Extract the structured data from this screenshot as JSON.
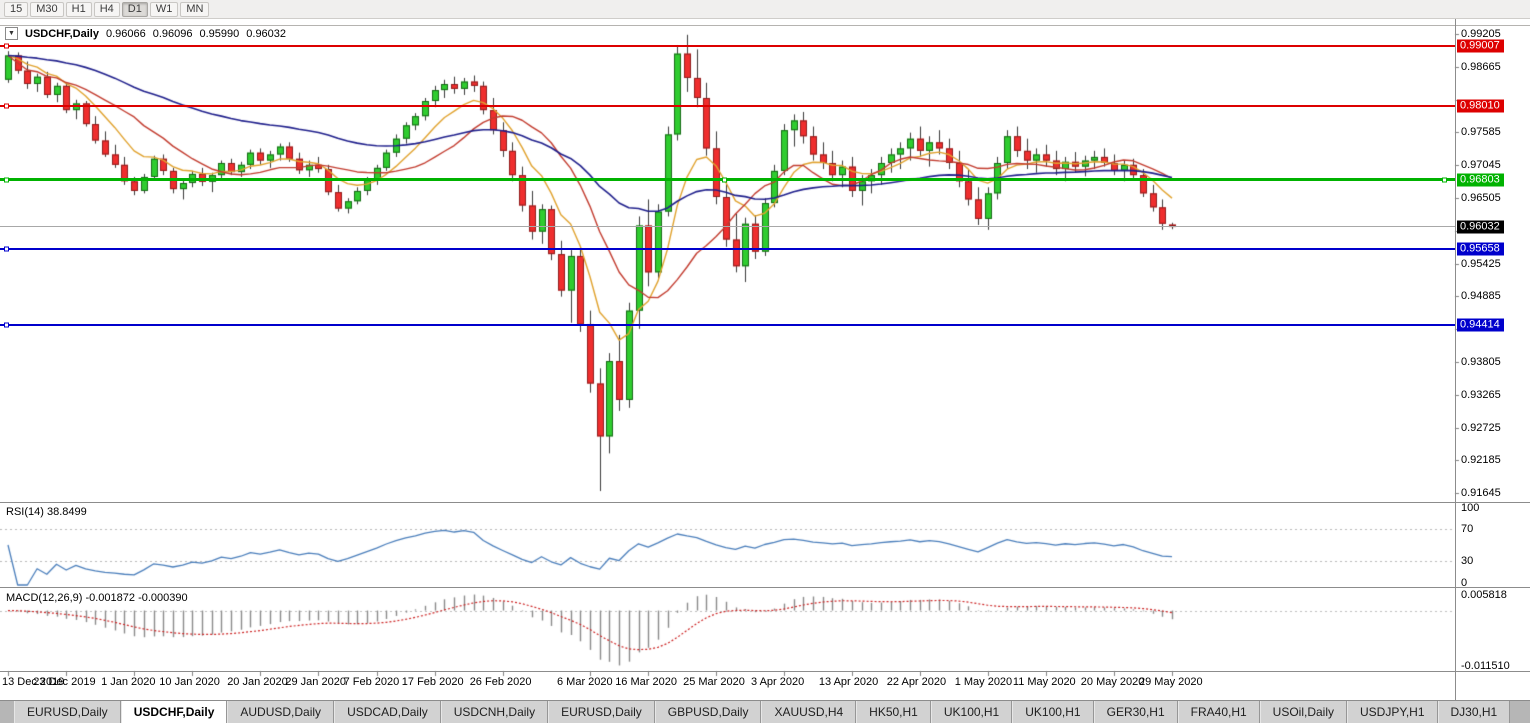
{
  "toolbar": {
    "timeframes": [
      {
        "label": "15",
        "active": false
      },
      {
        "label": "M30",
        "active": false
      },
      {
        "label": "H1",
        "active": false
      },
      {
        "label": "H4",
        "active": false
      },
      {
        "label": "D1",
        "active": true
      },
      {
        "label": "W1",
        "active": false
      },
      {
        "label": "MN",
        "active": false
      }
    ]
  },
  "chart_header": {
    "menu_icon_glyph": "▼",
    "symbol": "USDCHF,Daily",
    "open": "0.96066",
    "high": "0.96096",
    "low": "0.95990",
    "close": "0.96032"
  },
  "chart_data": {
    "type": "candlestick",
    "symbol": "USDCHF",
    "timeframe": "Daily",
    "y_axis": {
      "range": [
        0.915,
        0.9945
      ],
      "ticks": [
        "0.99205",
        "0.98665",
        "0.98125",
        "0.97585",
        "0.97045",
        "0.96505",
        "0.95965",
        "0.95425",
        "0.94885",
        "0.94345",
        "0.93805",
        "0.93265",
        "0.92725",
        "0.92185",
        "0.91645"
      ]
    },
    "x_ticks": [
      {
        "label": "13 Dec 2019",
        "i": 0
      },
      {
        "label": "23 Dec 2019",
        "i": 6
      },
      {
        "label": "1 Jan 2020",
        "i": 13
      },
      {
        "label": "10 Jan 2020",
        "i": 19
      },
      {
        "label": "20 Jan 2020",
        "i": 26
      },
      {
        "label": "29 Jan 2020",
        "i": 32
      },
      {
        "label": "7 Feb 2020",
        "i": 38
      },
      {
        "label": "17 Feb 2020",
        "i": 44
      },
      {
        "label": "26 Feb 2020",
        "i": 51
      },
      {
        "label": "6 Mar 2020",
        "i": 60
      },
      {
        "label": "16 Mar 2020",
        "i": 66
      },
      {
        "label": "25 Mar 2020",
        "i": 73
      },
      {
        "label": "3 Apr 2020",
        "i": 80
      },
      {
        "label": "13 Apr 2020",
        "i": 87
      },
      {
        "label": "22 Apr 2020",
        "i": 94
      },
      {
        "label": "1 May 2020",
        "i": 101
      },
      {
        "label": "11 May 2020",
        "i": 107
      },
      {
        "label": "20 May 2020",
        "i": 114
      },
      {
        "label": "29 May 2020",
        "i": 120
      }
    ],
    "candles": [
      [
        0.9845,
        0.9892,
        0.984,
        0.9885
      ],
      [
        0.9885,
        0.989,
        0.9855,
        0.986
      ],
      [
        0.986,
        0.9875,
        0.983,
        0.9838
      ],
      [
        0.9838,
        0.9855,
        0.9825,
        0.985
      ],
      [
        0.985,
        0.9858,
        0.9815,
        0.982
      ],
      [
        0.982,
        0.984,
        0.9808,
        0.9835
      ],
      [
        0.9835,
        0.984,
        0.979,
        0.9795
      ],
      [
        0.9795,
        0.9812,
        0.978,
        0.9806
      ],
      [
        0.9806,
        0.981,
        0.9768,
        0.9772
      ],
      [
        0.9772,
        0.9785,
        0.974,
        0.9745
      ],
      [
        0.9745,
        0.976,
        0.9718,
        0.9722
      ],
      [
        0.9722,
        0.9738,
        0.97,
        0.9705
      ],
      [
        0.9705,
        0.9718,
        0.9672,
        0.9678
      ],
      [
        0.9678,
        0.9685,
        0.9655,
        0.9662
      ],
      [
        0.9662,
        0.969,
        0.9658,
        0.9685
      ],
      [
        0.9685,
        0.972,
        0.968,
        0.9715
      ],
      [
        0.9715,
        0.9722,
        0.9688,
        0.9695
      ],
      [
        0.9695,
        0.97,
        0.9658,
        0.9665
      ],
      [
        0.9665,
        0.968,
        0.9648,
        0.9675
      ],
      [
        0.9675,
        0.9695,
        0.9668,
        0.969
      ],
      [
        0.969,
        0.97,
        0.967,
        0.9677
      ],
      [
        0.9677,
        0.9692,
        0.966,
        0.9688
      ],
      [
        0.9688,
        0.9712,
        0.9682,
        0.9708
      ],
      [
        0.9708,
        0.9715,
        0.9688,
        0.9693
      ],
      [
        0.9693,
        0.971,
        0.9685,
        0.9705
      ],
      [
        0.9705,
        0.973,
        0.9698,
        0.9725
      ],
      [
        0.9725,
        0.9732,
        0.9705,
        0.9712
      ],
      [
        0.9712,
        0.9728,
        0.97,
        0.9722
      ],
      [
        0.9722,
        0.974,
        0.9712,
        0.9735
      ],
      [
        0.9735,
        0.9742,
        0.971,
        0.9715
      ],
      [
        0.9715,
        0.9725,
        0.969,
        0.9696
      ],
      [
        0.9696,
        0.9712,
        0.9685,
        0.9705
      ],
      [
        0.9705,
        0.9718,
        0.9692,
        0.9698
      ],
      [
        0.9698,
        0.9705,
        0.9655,
        0.966
      ],
      [
        0.966,
        0.9672,
        0.9628,
        0.9633
      ],
      [
        0.9633,
        0.965,
        0.9625,
        0.9645
      ],
      [
        0.9645,
        0.9668,
        0.964,
        0.9662
      ],
      [
        0.9662,
        0.9685,
        0.9655,
        0.968
      ],
      [
        0.968,
        0.9705,
        0.9672,
        0.97
      ],
      [
        0.97,
        0.973,
        0.9695,
        0.9725
      ],
      [
        0.9725,
        0.9755,
        0.9718,
        0.9748
      ],
      [
        0.9748,
        0.9775,
        0.974,
        0.977
      ],
      [
        0.977,
        0.979,
        0.9762,
        0.9785
      ],
      [
        0.9785,
        0.9815,
        0.9778,
        0.981
      ],
      [
        0.981,
        0.9835,
        0.98,
        0.9828
      ],
      [
        0.9828,
        0.9845,
        0.9815,
        0.9838
      ],
      [
        0.9838,
        0.985,
        0.9822,
        0.983
      ],
      [
        0.983,
        0.9848,
        0.982,
        0.9842
      ],
      [
        0.9842,
        0.9852,
        0.9825,
        0.9835
      ],
      [
        0.9835,
        0.9842,
        0.9788,
        0.9795
      ],
      [
        0.9795,
        0.9815,
        0.9755,
        0.9762
      ],
      [
        0.9762,
        0.9775,
        0.9718,
        0.9728
      ],
      [
        0.9728,
        0.9742,
        0.9678,
        0.9688
      ],
      [
        0.9688,
        0.9702,
        0.9628,
        0.9638
      ],
      [
        0.9638,
        0.9662,
        0.9582,
        0.9595
      ],
      [
        0.9595,
        0.964,
        0.9575,
        0.9632
      ],
      [
        0.9632,
        0.9638,
        0.9548,
        0.9558
      ],
      [
        0.9558,
        0.958,
        0.9488,
        0.9498
      ],
      [
        0.9498,
        0.9565,
        0.9445,
        0.9555
      ],
      [
        0.9555,
        0.957,
        0.943,
        0.9442
      ],
      [
        0.9442,
        0.9465,
        0.933,
        0.9345
      ],
      [
        0.9345,
        0.937,
        0.9168,
        0.9258
      ],
      [
        0.9258,
        0.9395,
        0.923,
        0.9382
      ],
      [
        0.9382,
        0.9425,
        0.93,
        0.9318
      ],
      [
        0.9318,
        0.9478,
        0.9305,
        0.9465
      ],
      [
        0.9465,
        0.962,
        0.9435,
        0.9605
      ],
      [
        0.9605,
        0.9648,
        0.9505,
        0.9528
      ],
      [
        0.9528,
        0.964,
        0.9515,
        0.9628
      ],
      [
        0.9628,
        0.9768,
        0.962,
        0.9755
      ],
      [
        0.9755,
        0.9901,
        0.9745,
        0.9888
      ],
      [
        0.9888,
        0.9919,
        0.9825,
        0.9848
      ],
      [
        0.9848,
        0.9895,
        0.98,
        0.9815
      ],
      [
        0.9815,
        0.984,
        0.972,
        0.9732
      ],
      [
        0.9732,
        0.976,
        0.964,
        0.9652
      ],
      [
        0.9652,
        0.968,
        0.957,
        0.9582
      ],
      [
        0.9582,
        0.9625,
        0.9528,
        0.9538
      ],
      [
        0.9538,
        0.9618,
        0.9512,
        0.9608
      ],
      [
        0.9608,
        0.9622,
        0.955,
        0.9562
      ],
      [
        0.9562,
        0.965,
        0.9555,
        0.9642
      ],
      [
        0.9642,
        0.9705,
        0.9635,
        0.9695
      ],
      [
        0.9695,
        0.9772,
        0.9688,
        0.9762
      ],
      [
        0.9762,
        0.9788,
        0.9735,
        0.9778
      ],
      [
        0.9778,
        0.9792,
        0.974,
        0.9752
      ],
      [
        0.9752,
        0.9768,
        0.9712,
        0.9722
      ],
      [
        0.9722,
        0.9742,
        0.9698,
        0.9708
      ],
      [
        0.9708,
        0.9728,
        0.9678,
        0.9688
      ],
      [
        0.9688,
        0.9712,
        0.9668,
        0.9702
      ],
      [
        0.9702,
        0.9718,
        0.9652,
        0.9662
      ],
      [
        0.9662,
        0.9688,
        0.9638,
        0.9678
      ],
      [
        0.9678,
        0.9698,
        0.9658,
        0.9688
      ],
      [
        0.9688,
        0.9718,
        0.9672,
        0.9708
      ],
      [
        0.9708,
        0.9732,
        0.9692,
        0.9722
      ],
      [
        0.9722,
        0.9742,
        0.9698,
        0.9732
      ],
      [
        0.9732,
        0.9758,
        0.9712,
        0.9748
      ],
      [
        0.9748,
        0.9768,
        0.9718,
        0.9728
      ],
      [
        0.9728,
        0.9752,
        0.9702,
        0.9742
      ],
      [
        0.9742,
        0.9762,
        0.9722,
        0.9732
      ],
      [
        0.9732,
        0.9748,
        0.9698,
        0.9708
      ],
      [
        0.9708,
        0.9728,
        0.9668,
        0.9678
      ],
      [
        0.9678,
        0.9698,
        0.9638,
        0.9648
      ],
      [
        0.9648,
        0.9668,
        0.9606,
        0.9616
      ],
      [
        0.9616,
        0.9668,
        0.9598,
        0.9658
      ],
      [
        0.9658,
        0.9718,
        0.9648,
        0.9708
      ],
      [
        0.9708,
        0.9762,
        0.9698,
        0.9752
      ],
      [
        0.9752,
        0.9768,
        0.9718,
        0.9728
      ],
      [
        0.9728,
        0.9748,
        0.9698,
        0.9712
      ],
      [
        0.9712,
        0.9732,
        0.9692,
        0.9722
      ],
      [
        0.9722,
        0.9738,
        0.9702,
        0.9712
      ],
      [
        0.9712,
        0.9728,
        0.9688,
        0.9698
      ],
      [
        0.9698,
        0.9718,
        0.9678,
        0.971
      ],
      [
        0.971,
        0.9726,
        0.9692,
        0.9702
      ],
      [
        0.9702,
        0.972,
        0.9686,
        0.9712
      ],
      [
        0.9712,
        0.9728,
        0.9698,
        0.9718
      ],
      [
        0.9718,
        0.9732,
        0.9702,
        0.9708
      ],
      [
        0.9708,
        0.9722,
        0.9688,
        0.9695
      ],
      [
        0.9695,
        0.9712,
        0.9678,
        0.9705
      ],
      [
        0.9705,
        0.9715,
        0.9682,
        0.9688
      ],
      [
        0.9688,
        0.9698,
        0.9652,
        0.9658
      ],
      [
        0.9658,
        0.9672,
        0.9628,
        0.9635
      ],
      [
        0.9635,
        0.9648,
        0.9598,
        0.9608
      ],
      [
        0.96066,
        0.96096,
        0.9599,
        0.96032
      ]
    ],
    "moving_averages": [
      {
        "name": "ma-fast",
        "method": "ema",
        "period": 8,
        "color": "#e0a22e",
        "width": 1.4
      },
      {
        "name": "ma-medium",
        "method": "sma",
        "period": 14,
        "color": "#c23b2e",
        "width": 1.4
      },
      {
        "name": "ma-slow",
        "method": "ema",
        "period": 45,
        "color": "#20208c",
        "width": 1.6
      }
    ],
    "horizontal_levels": [
      {
        "price": 0.99007,
        "label": "0.99007",
        "color": "#dd0000",
        "thickness": 2,
        "selected": false
      },
      {
        "price": 0.9801,
        "label": "0.98010",
        "color": "#dd0000",
        "thickness": 2,
        "selected": false
      },
      {
        "price": 0.96803,
        "label": "0.96803",
        "color": "#00b200",
        "thickness": 3,
        "selected": true
      },
      {
        "price": 0.95658,
        "label": "0.95658",
        "color": "#0000cc",
        "thickness": 2,
        "selected": false
      },
      {
        "price": 0.94414,
        "label": "0.94414",
        "color": "#0000cc",
        "thickness": 2,
        "selected": false
      }
    ],
    "current_price": {
      "value": 0.96032,
      "label": "0.96032",
      "line_color": "#a8a8a8",
      "label_bg": "#000000"
    },
    "rsi_pane": {
      "label": "RSI(14) 38.8499",
      "period": 14,
      "value": 38.8499,
      "levels": [
        70,
        30
      ],
      "axis_labels": [
        "100",
        "70",
        "30",
        "0"
      ],
      "line_color": "#4a7ebb"
    },
    "macd_pane": {
      "label": "MACD(12,26,9) -0.001872 -0.000390",
      "fast": 12,
      "slow": 26,
      "signal": 9,
      "values": [
        "-0.001872",
        "-0.000390"
      ],
      "axis_labels": [
        "0.005818",
        "-0.011510"
      ],
      "histogram_color": "#8a8a8a",
      "signal_color": "#cc2222"
    }
  },
  "bottom_tabs": {
    "tabs": [
      {
        "label": "EURUSD,Daily",
        "active": false
      },
      {
        "label": "USDCHF,Daily",
        "active": true
      },
      {
        "label": "AUDUSD,Daily",
        "active": false
      },
      {
        "label": "USDCAD,Daily",
        "active": false
      },
      {
        "label": "USDCNH,Daily",
        "active": false
      },
      {
        "label": "EURUSD,Daily",
        "active": false
      },
      {
        "label": "GBPUSD,Daily",
        "active": false
      },
      {
        "label": "XAUUSD,H4",
        "active": false
      },
      {
        "label": "HK50,H1",
        "active": false
      },
      {
        "label": "UK100,H1",
        "active": false
      },
      {
        "label": "UK100,H1",
        "active": false
      },
      {
        "label": "GER30,H1",
        "active": false
      },
      {
        "label": "FRA40,H1",
        "active": false
      },
      {
        "label": "USOil,Daily",
        "active": false
      },
      {
        "label": "USDJPY,H1",
        "active": false
      },
      {
        "label": "DJ30,H1",
        "active": false
      }
    ]
  }
}
